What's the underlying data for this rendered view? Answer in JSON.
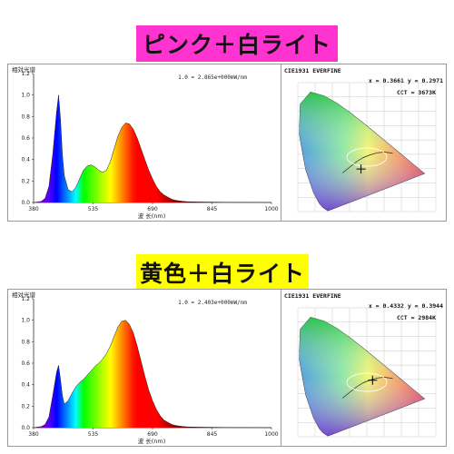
{
  "banners": {
    "top": "ピンク＋白ライト",
    "bottom": "黄色＋白ライト"
  },
  "chart_data": [
    {
      "type": "line",
      "subtype": "spectral-power-distribution",
      "title": "ピンク＋白ライト",
      "ylabel": "相対光谱",
      "xlabel": "波 长(nm)",
      "scale_note": "1.0 = 2.865e+000mW/nm",
      "xlim": [
        380,
        1000
      ],
      "ylim": [
        0,
        1.2
      ],
      "xticks": [
        "380",
        "535",
        "690",
        "845",
        "1000"
      ],
      "yticks": [
        "0.0",
        "0.2",
        "0.4",
        "0.6",
        "0.8",
        "1.0",
        "1.2"
      ],
      "x": [
        380,
        400,
        410,
        420,
        430,
        440,
        445,
        450,
        455,
        460,
        470,
        480,
        490,
        500,
        510,
        520,
        530,
        540,
        550,
        560,
        570,
        580,
        590,
        600,
        610,
        620,
        630,
        640,
        650,
        660,
        670,
        680,
        690,
        700,
        710,
        720,
        730,
        740,
        750,
        760,
        770,
        780,
        800,
        850,
        900,
        1000
      ],
      "series": [
        {
          "values": [
            0,
            0.01,
            0.04,
            0.15,
            0.45,
            0.85,
            1.0,
            0.78,
            0.45,
            0.25,
            0.12,
            0.1,
            0.14,
            0.22,
            0.3,
            0.34,
            0.35,
            0.33,
            0.3,
            0.28,
            0.3,
            0.38,
            0.5,
            0.62,
            0.7,
            0.74,
            0.73,
            0.68,
            0.6,
            0.5,
            0.4,
            0.3,
            0.22,
            0.15,
            0.1,
            0.07,
            0.05,
            0.03,
            0.02,
            0.015,
            0.01,
            0.008,
            0.005,
            0.003,
            0.002,
            0.001
          ]
        }
      ]
    },
    {
      "type": "scatter",
      "subtype": "cie1931-chromaticity",
      "title": "CIE1931 EVERFINE",
      "readout": "x = 0.3661 y = 0.2971",
      "cct": "CCT = 3673K",
      "point": {
        "x": 0.3661,
        "y": 0.2971
      }
    },
    {
      "type": "line",
      "subtype": "spectral-power-distribution",
      "title": "黄色＋白ライト",
      "ylabel": "相对光谱",
      "xlabel": "波 长(nm)",
      "scale_note": "1.0 = 2.403e+000mW/nm",
      "xlim": [
        380,
        1000
      ],
      "ylim": [
        0,
        1.2
      ],
      "xticks": [
        "380",
        "535",
        "690",
        "845",
        "1000"
      ],
      "yticks": [
        "0.0",
        "0.2",
        "0.4",
        "0.6",
        "0.8",
        "1.0",
        "1.2"
      ],
      "x": [
        380,
        400,
        410,
        420,
        430,
        440,
        445,
        450,
        455,
        460,
        470,
        480,
        490,
        500,
        510,
        520,
        530,
        540,
        550,
        560,
        570,
        580,
        590,
        600,
        610,
        620,
        630,
        640,
        650,
        660,
        670,
        680,
        690,
        700,
        710,
        720,
        730,
        740,
        750,
        760,
        770,
        780,
        800,
        850,
        900,
        1000
      ],
      "series": [
        {
          "values": [
            0,
            0.01,
            0.03,
            0.1,
            0.3,
            0.52,
            0.58,
            0.45,
            0.3,
            0.22,
            0.25,
            0.32,
            0.38,
            0.42,
            0.45,
            0.49,
            0.53,
            0.57,
            0.6,
            0.64,
            0.69,
            0.76,
            0.85,
            0.94,
            0.99,
            1.0,
            0.96,
            0.88,
            0.76,
            0.62,
            0.48,
            0.35,
            0.25,
            0.17,
            0.11,
            0.07,
            0.05,
            0.03,
            0.02,
            0.015,
            0.01,
            0.008,
            0.005,
            0.003,
            0.002,
            0.001
          ]
        }
      ]
    },
    {
      "type": "scatter",
      "subtype": "cie1931-chromaticity",
      "title": "CIE1931 EVERFINE",
      "readout": "x = 0.4332 y = 0.3944",
      "cct": "CCT = 2984K",
      "point": {
        "x": 0.4332,
        "y": 0.3944
      }
    }
  ]
}
